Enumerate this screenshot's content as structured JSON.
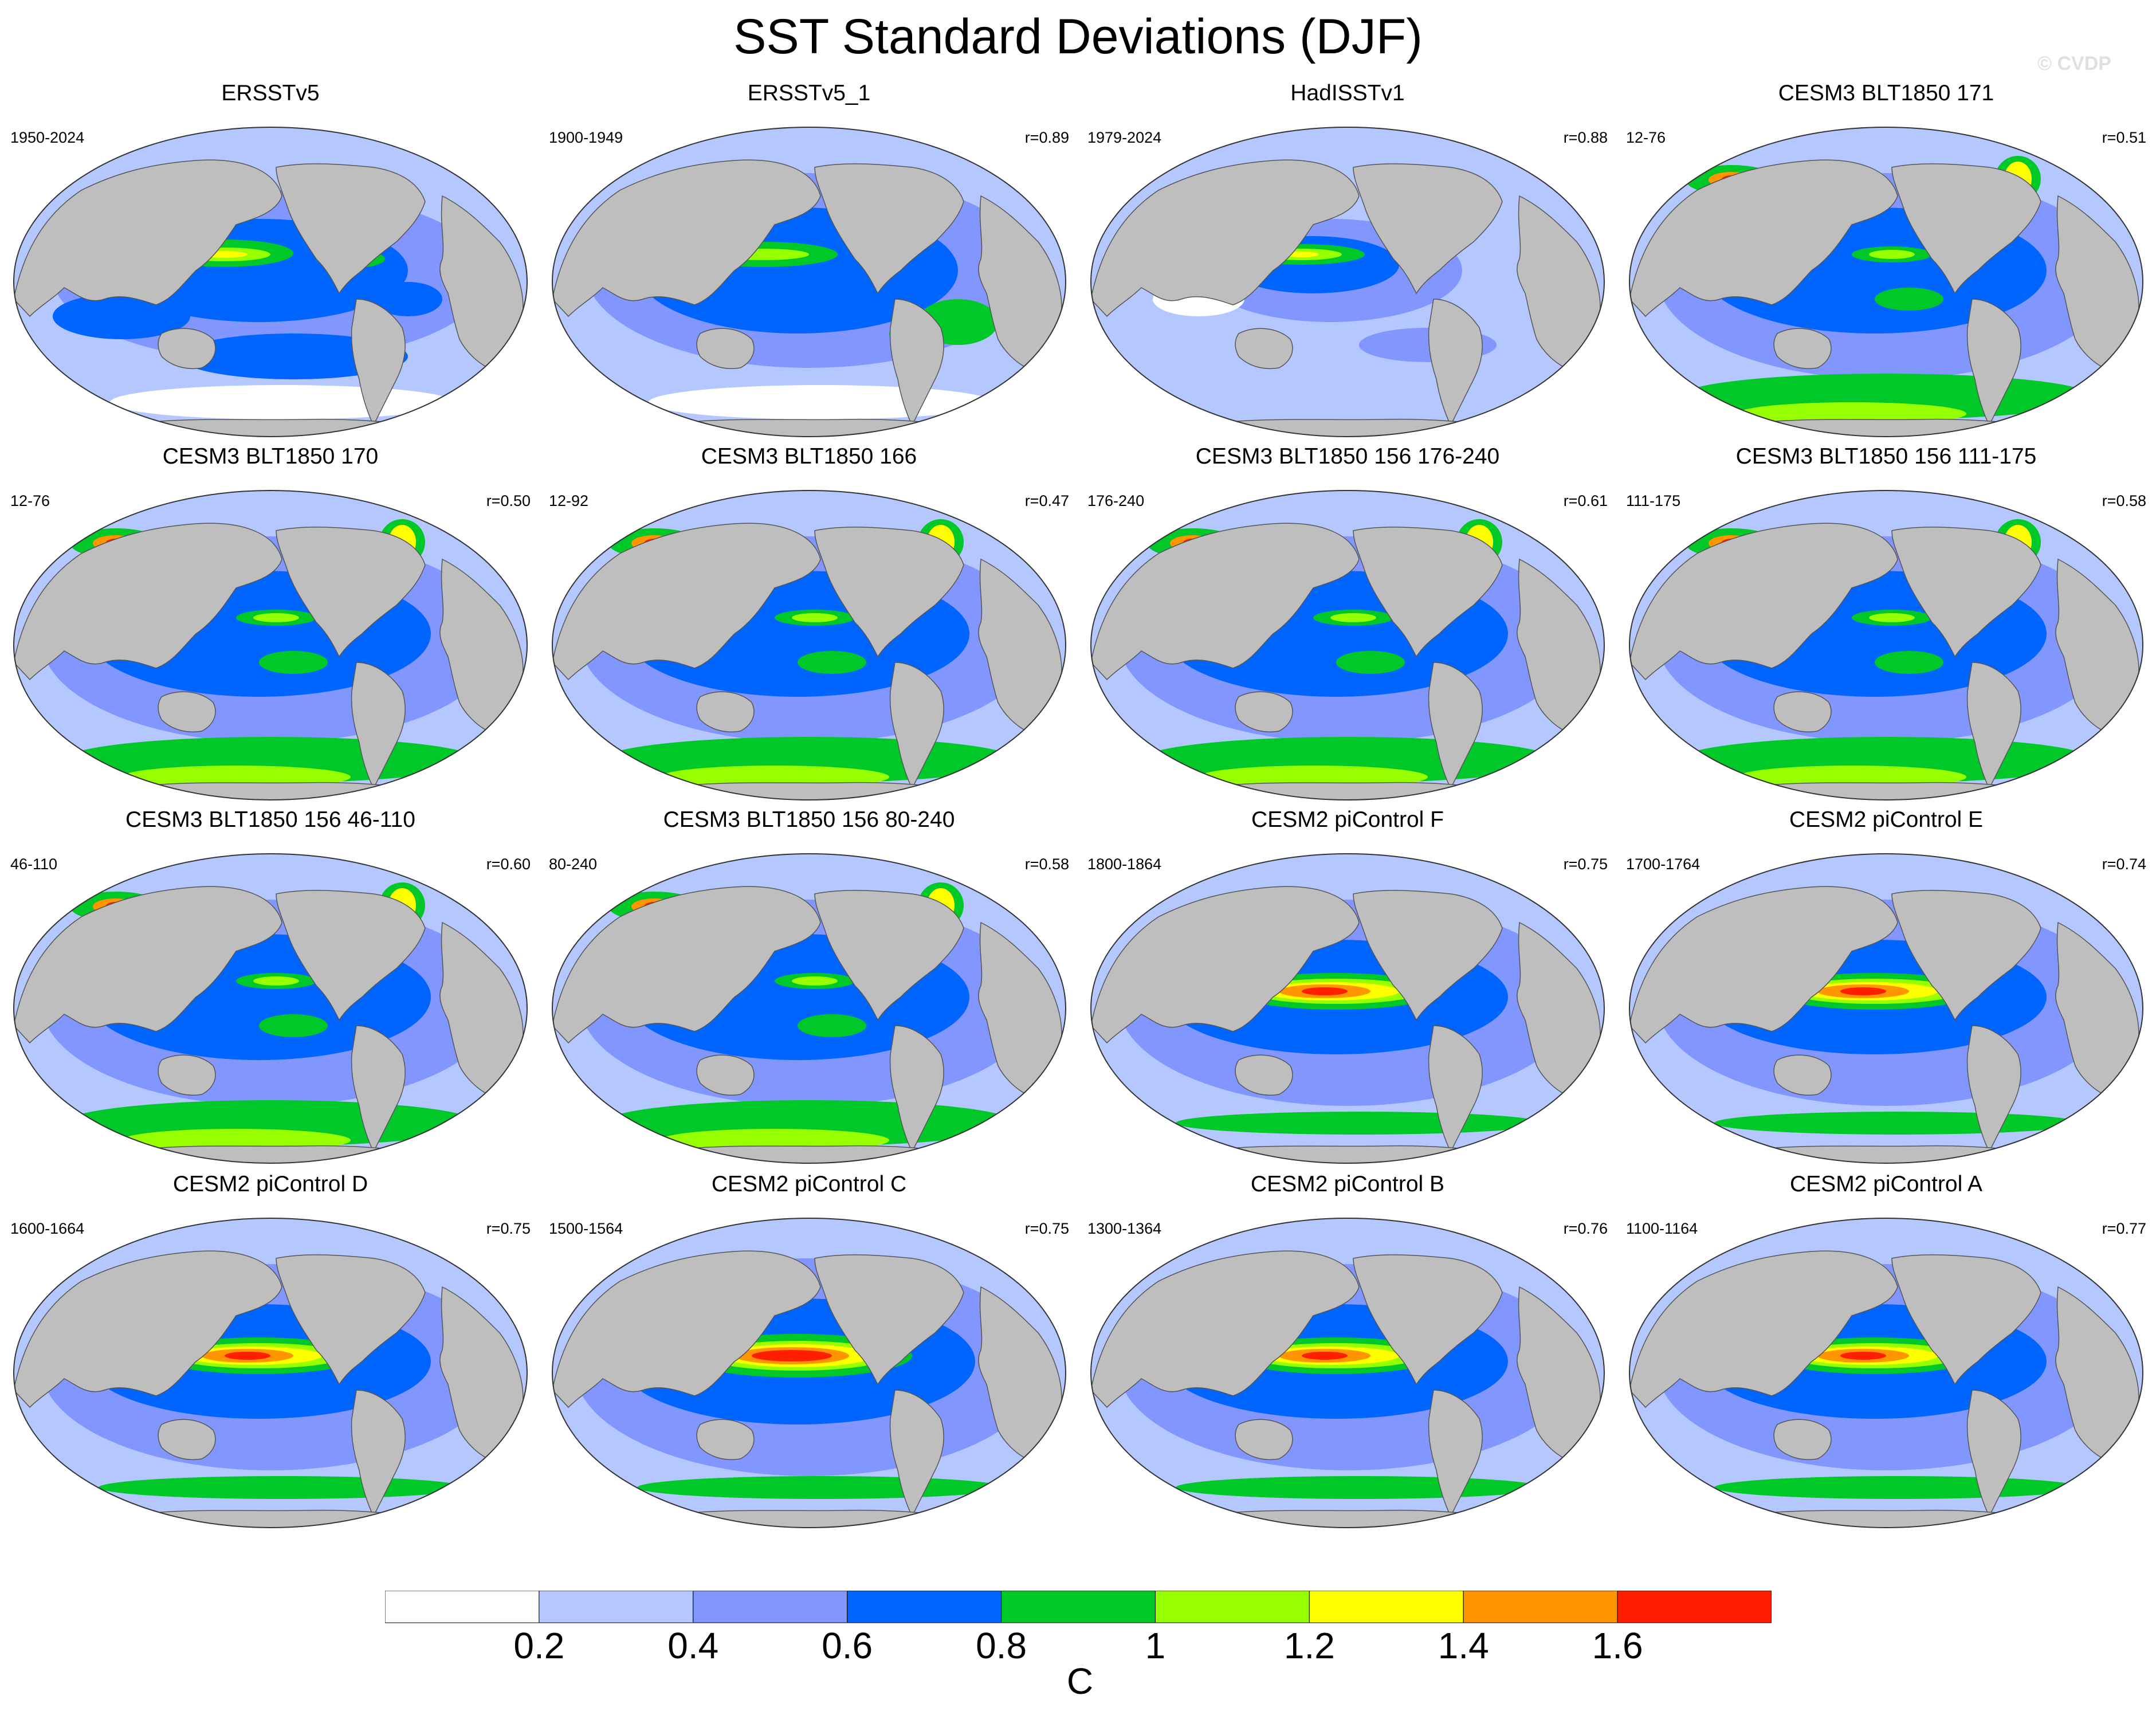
{
  "figure": {
    "title": "SST Standard Deviations (DJF)",
    "watermark": "© CVDP",
    "units": "C"
  },
  "colors": {
    "land": "#bebebe",
    "levels": [
      "#ffffff",
      "#b4c8ff",
      "#8296ff",
      "#0064ff",
      "#00c828",
      "#96ff00",
      "#ffff00",
      "#ff9600",
      "#ff1e00"
    ]
  },
  "colorbar": {
    "labels": [
      "0.2",
      "0.4",
      "0.6",
      "0.8",
      "1",
      "1.2",
      "1.4",
      "1.6"
    ]
  },
  "panels": [
    {
      "title": "ERSSTv5",
      "period": "1950-2024",
      "r": "",
      "style": "obs"
    },
    {
      "title": "ERSSTv5_1",
      "period": "1900-1949",
      "r": "r=0.89",
      "style": "obs1"
    },
    {
      "title": "HadISSTv1",
      "period": "1979-2024",
      "r": "r=0.88",
      "style": "had"
    },
    {
      "title": "CESM3 BLT1850 171",
      "period": "12-76",
      "r": "r=0.51",
      "style": "cesm3"
    },
    {
      "title": "CESM3 BLT1850 170",
      "period": "12-76",
      "r": "r=0.50",
      "style": "cesm3"
    },
    {
      "title": "CESM3 BLT1850 166",
      "period": "12-92",
      "r": "r=0.47",
      "style": "cesm3"
    },
    {
      "title": "CESM3 BLT1850 156 176-240",
      "period": "176-240",
      "r": "r=0.61",
      "style": "cesm3"
    },
    {
      "title": "CESM3 BLT1850 156 111-175",
      "period": "111-175",
      "r": "r=0.58",
      "style": "cesm3"
    },
    {
      "title": "CESM3 BLT1850 156 46-110",
      "period": "46-110",
      "r": "r=0.60",
      "style": "cesm3"
    },
    {
      "title": "CESM3 BLT1850 156 80-240",
      "period": "80-240",
      "r": "r=0.58",
      "style": "cesm3"
    },
    {
      "title": "CESM2 piControl F",
      "period": "1800-1864",
      "r": "r=0.75",
      "style": "cesm2"
    },
    {
      "title": "CESM2 piControl E",
      "period": "1700-1764",
      "r": "r=0.74",
      "style": "cesm2"
    },
    {
      "title": "CESM2 piControl D",
      "period": "1600-1664",
      "r": "r=0.75",
      "style": "cesm2"
    },
    {
      "title": "CESM2 piControl C",
      "period": "1500-1564",
      "r": "r=0.75",
      "style": "cesm2c"
    },
    {
      "title": "CESM2 piControl B",
      "period": "1300-1364",
      "r": "r=0.76",
      "style": "cesm2"
    },
    {
      "title": "CESM2 piControl A",
      "period": "1100-1164",
      "r": "r=0.77",
      "style": "cesm2"
    }
  ]
}
